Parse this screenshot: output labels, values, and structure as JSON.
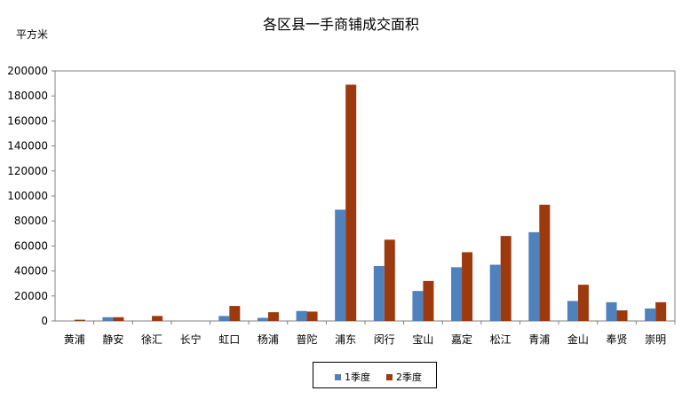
{
  "chart_data": {
    "type": "bar",
    "title": "各区县一手商铺成交面积",
    "ylabel": "平方米",
    "xlabel": "",
    "ylim": [
      0,
      200000
    ],
    "yticks": [
      0,
      20000,
      40000,
      60000,
      80000,
      100000,
      120000,
      140000,
      160000,
      180000,
      200000
    ],
    "categories": [
      "黄浦",
      "静安",
      "徐汇",
      "长宁",
      "虹口",
      "杨浦",
      "普陀",
      "浦东",
      "闵行",
      "宝山",
      "嘉定",
      "松江",
      "青浦",
      "金山",
      "奉贤",
      "崇明"
    ],
    "series": [
      {
        "name": "1季度",
        "color": "#4F81BD",
        "values": [
          0,
          3000,
          0,
          0,
          4000,
          2500,
          8000,
          89000,
          44000,
          24000,
          43000,
          45000,
          71000,
          16000,
          15000,
          10000
        ]
      },
      {
        "name": "2季度",
        "color": "#9C3A0E",
        "values": [
          1000,
          3000,
          4000,
          0,
          12000,
          7000,
          7500,
          189000,
          65000,
          32000,
          55000,
          68000,
          93000,
          29000,
          8500,
          15000
        ]
      }
    ],
    "grid": false,
    "legend_position": "bottom"
  }
}
